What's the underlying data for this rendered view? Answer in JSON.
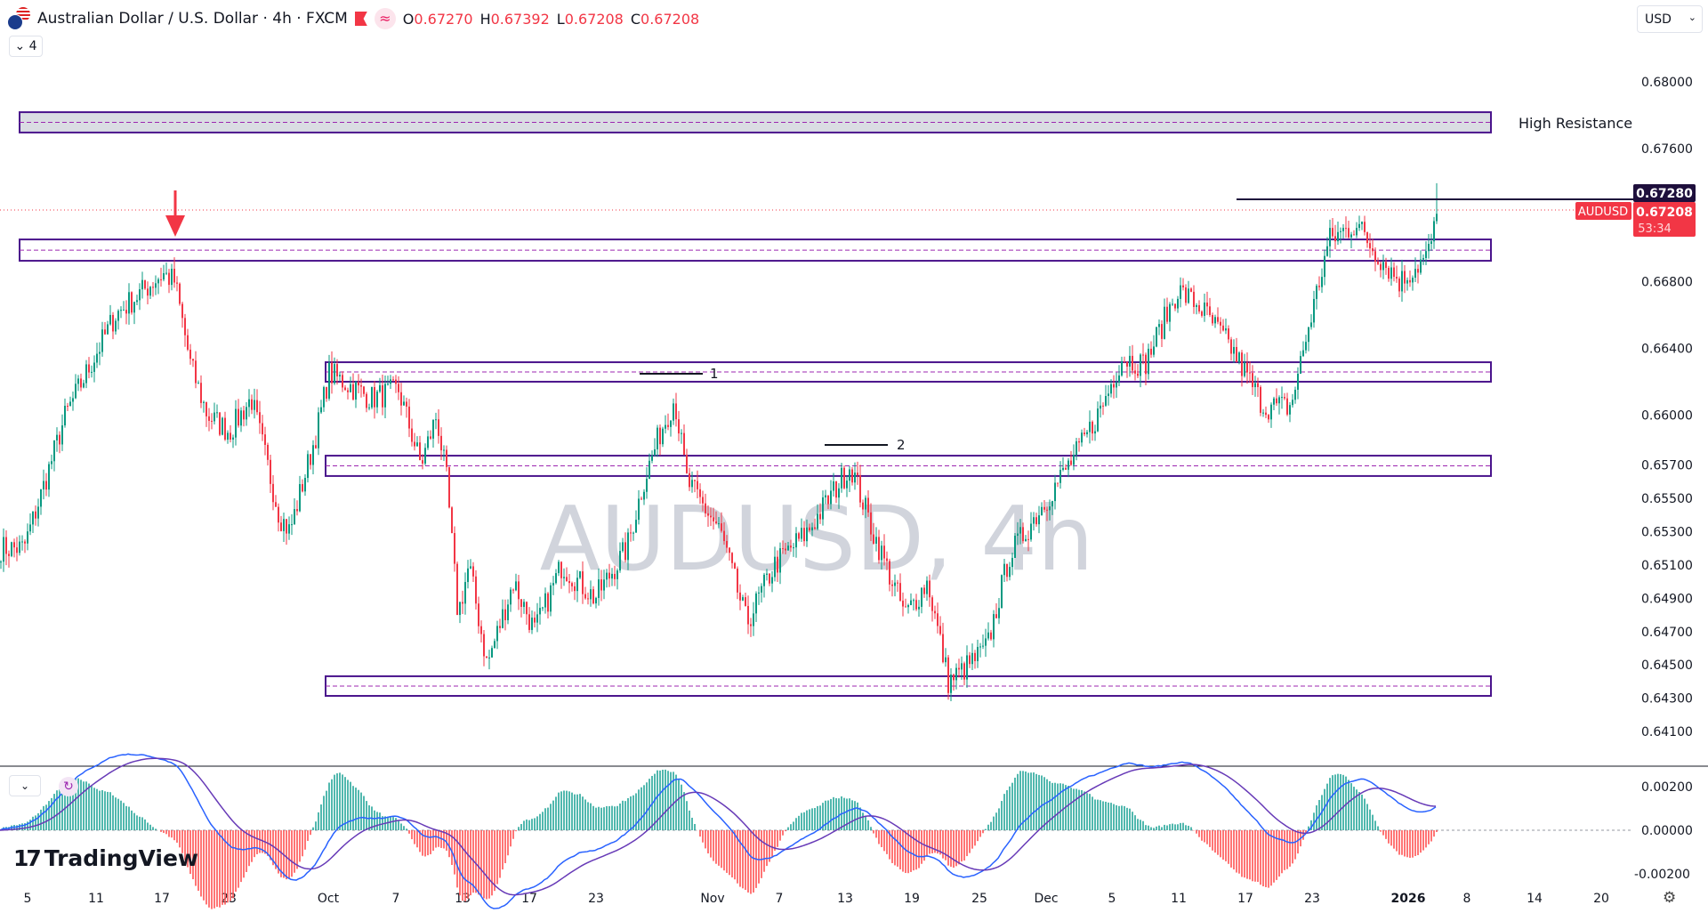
{
  "header": {
    "title": "Australian Dollar / U.S. Dollar · 4h · FXCM",
    "ohlc": [
      {
        "k": "O",
        "v": "0.67270"
      },
      {
        "k": "H",
        "v": "0.67392"
      },
      {
        "k": "L",
        "v": "0.67208"
      },
      {
        "k": "C",
        "v": "0.67208"
      }
    ],
    "indicator_count": "4",
    "currency": "USD",
    "icons": [
      "aud-usd-flag-icon",
      "flag-marker-icon",
      "indicator-wave-icon"
    ]
  },
  "watermark": "AUDUSD, 4h",
  "price_axis": [
    "0.68000",
    "0.67600",
    "0.66800",
    "0.66400",
    "0.66000",
    "0.65700",
    "0.65500",
    "0.65300",
    "0.65100",
    "0.64900",
    "0.64700",
    "0.64500",
    "0.64300",
    "0.64100"
  ],
  "macd_axis": [
    "0.00200",
    "0.00000",
    "-0.00200"
  ],
  "date_axis": [
    {
      "label": "5",
      "date": "2025-09-05"
    },
    {
      "label": "11",
      "date": "2025-09-11"
    },
    {
      "label": "17",
      "date": "2025-09-17"
    },
    {
      "label": "23",
      "date": "2025-09-23"
    },
    {
      "label": "Oct",
      "date": "2025-10-01"
    },
    {
      "label": "7",
      "date": "2025-10-07"
    },
    {
      "label": "13",
      "date": "2025-10-13"
    },
    {
      "label": "17",
      "date": "2025-10-17"
    },
    {
      "label": "23",
      "date": "2025-10-23"
    },
    {
      "label": "Nov",
      "date": "2025-11-03"
    },
    {
      "label": "7",
      "date": "2025-11-07"
    },
    {
      "label": "13",
      "date": "2025-11-13"
    },
    {
      "label": "19",
      "date": "2025-11-19"
    },
    {
      "label": "25",
      "date": "2025-11-25"
    },
    {
      "label": "Dec",
      "date": "2025-12-01"
    },
    {
      "label": "5",
      "date": "2025-12-05"
    },
    {
      "label": "11",
      "date": "2025-12-11"
    },
    {
      "label": "17",
      "date": "2025-12-17"
    },
    {
      "label": "23",
      "date": "2025-12-23"
    },
    {
      "label": "2026",
      "date": "2026-01-01",
      "bold": true
    },
    {
      "label": "8",
      "date": "2026-01-08"
    },
    {
      "label": "14",
      "date": "2026-01-14"
    },
    {
      "label": "20",
      "date": "2026-01-20"
    }
  ],
  "price_labels": {
    "alert_line": "0.67280",
    "symbol": "AUDUSD",
    "last": "0.67208",
    "countdown": "53:34"
  },
  "zones": [
    {
      "name": "high-resistance",
      "top": 0.67818,
      "bottom": 0.67696,
      "fill": "#d1d4dc"
    },
    {
      "name": "zone",
      "top": 0.67054,
      "bottom": 0.66926
    },
    {
      "name": "zone",
      "top": 0.66317,
      "bottom": 0.662
    },
    {
      "name": "zone",
      "top": 0.65756,
      "bottom": 0.65634
    },
    {
      "name": "zone",
      "top": 0.64432,
      "bottom": 0.64314
    }
  ],
  "annotations": {
    "high_resistance": "High Resistance",
    "mark_1": "1",
    "mark_2": "2"
  },
  "price_path": [
    [
      "2025-09-04T14",
      0.652
    ],
    [
      "2025-09-06T00",
      0.655
    ],
    [
      "2025-09-08T06",
      0.66
    ],
    [
      "2025-09-12T16",
      0.666
    ],
    [
      "2025-09-17T00",
      0.6685
    ],
    [
      "2025-09-18T02",
      0.668
    ],
    [
      "2025-09-19T12",
      0.663
    ],
    [
      "2025-09-21T00",
      0.66
    ],
    [
      "2025-09-23T00",
      0.659
    ],
    [
      "2025-09-24T18",
      0.661
    ],
    [
      "2025-09-27T00",
      0.654
    ],
    [
      "2025-09-27T20",
      0.653
    ],
    [
      "2025-09-30T00",
      0.659
    ],
    [
      "2025-10-01T00",
      0.6625
    ],
    [
      "2025-10-04T18",
      0.661
    ],
    [
      "2025-10-07T04",
      0.6615
    ],
    [
      "2025-10-09T04",
      0.657
    ],
    [
      "2025-10-10T14",
      0.66
    ],
    [
      "2025-10-11T12",
      0.656
    ],
    [
      "2025-10-12T12",
      0.648
    ],
    [
      "2025-10-13T08",
      0.651
    ],
    [
      "2025-10-14T10",
      0.645
    ],
    [
      "2025-10-16T00",
      0.65
    ],
    [
      "2025-10-17T10",
      0.647
    ],
    [
      "2025-10-19T20",
      0.651
    ],
    [
      "2025-10-22T20",
      0.649
    ],
    [
      "2025-10-25T20",
      0.652
    ],
    [
      "2025-10-27T10",
      0.656
    ],
    [
      "2025-10-29T00",
      0.659
    ],
    [
      "2025-10-30T08",
      0.661
    ],
    [
      "2025-10-31T12",
      0.656
    ],
    [
      "2025-11-03T10",
      0.653
    ],
    [
      "2025-11-05T00",
      0.6475
    ],
    [
      "2025-11-06T16",
      0.651
    ],
    [
      "2025-11-09T12",
      0.653
    ],
    [
      "2025-11-13T10",
      0.657
    ],
    [
      "2025-11-15T10",
      0.653
    ],
    [
      "2025-11-18T08",
      0.648
    ],
    [
      "2025-11-20T08",
      0.65
    ],
    [
      "2025-11-22T04",
      0.644
    ],
    [
      "2025-11-23T04",
      0.6445
    ],
    [
      "2025-11-25T14",
      0.646
    ],
    [
      "2025-11-27T14",
      0.6515
    ],
    [
      "2025-12-01T00",
      0.655
    ],
    [
      "2025-12-03T00",
      0.658
    ],
    [
      "2025-12-04T08",
      0.6605
    ],
    [
      "2025-12-05T20",
      0.6635
    ],
    [
      "2025-12-07T20",
      0.663
    ],
    [
      "2025-12-10T20",
      0.6675
    ],
    [
      "2025-12-12T20",
      0.6665
    ],
    [
      "2025-12-15T16",
      0.664
    ],
    [
      "2025-12-18T14",
      0.6605
    ],
    [
      "2025-12-21T00",
      0.6605
    ],
    [
      "2025-12-22T12",
      0.665
    ],
    [
      "2025-12-24T12",
      0.6705
    ],
    [
      "2025-12-27T02",
      0.6715
    ],
    [
      "2025-12-28T14",
      0.67
    ],
    [
      "2025-12-31T04",
      0.668
    ],
    [
      "2026-01-02T00",
      0.669
    ],
    [
      "2026-01-03T04",
      0.6695
    ],
    [
      "2026-01-04T12",
      0.67208
    ]
  ],
  "colors": {
    "up": "#089981",
    "down": "#f23645",
    "zone_border": "#4a148c",
    "zone_mid": "#9c27b0",
    "macd": "#2962ff",
    "signal": "#673ab7",
    "alert_bg": "#1e0f3c",
    "last_bg": "#f23645"
  },
  "watermark_color": "#d1d4dc",
  "logo_text": "TradingView"
}
